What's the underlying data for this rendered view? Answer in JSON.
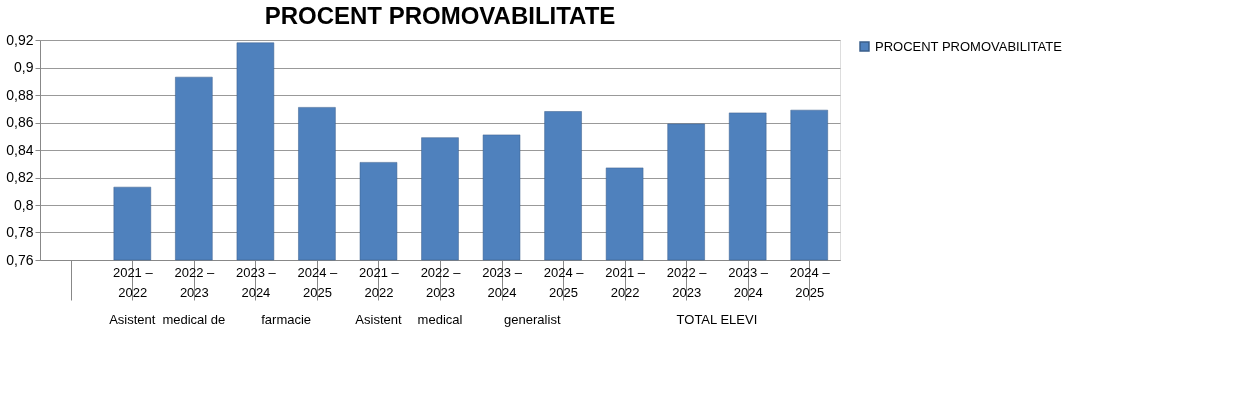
{
  "chart_data": {
    "type": "bar",
    "title": "PROCENT  PROMOVABILITATE",
    "categories": [
      null,
      "2021 – 2022",
      "2022 – 2023",
      "2023 – 2024",
      "2024 – 2025",
      "2021 – 2022",
      "2022 – 2023",
      "2023 – 2024",
      "2024 – 2025",
      "2021 – 2022",
      "2022 – 2023",
      "2023 – 2024",
      "2024 – 2025"
    ],
    "series": [
      {
        "name": "PROCENT  PROMOVABILITATE",
        "color": "#4f81bd",
        "values": [
          null,
          0.813,
          0.893,
          0.918,
          0.871,
          0.831,
          0.849,
          0.851,
          0.868,
          0.827,
          0.859,
          0.867,
          0.869
        ]
      }
    ],
    "annotations": [
      "Asistent",
      "medical de",
      "farmacie",
      "Asistent",
      "medical",
      "generalist",
      "TOTAL ELEVI"
    ],
    "ylim": [
      0.76,
      0.92
    ],
    "yticks": [
      {
        "value": 0.76,
        "label": "0,76"
      },
      {
        "value": 0.78,
        "label": "0,78"
      },
      {
        "value": 0.8,
        "label": "0,8"
      },
      {
        "value": 0.82,
        "label": "0,82"
      },
      {
        "value": 0.84,
        "label": "0,84"
      },
      {
        "value": 0.86,
        "label": "0,86"
      },
      {
        "value": 0.88,
        "label": "0,88"
      },
      {
        "value": 0.9,
        "label": "0,9"
      },
      {
        "value": 0.92,
        "label": "0,92"
      }
    ],
    "grid": "y",
    "legend": "right"
  }
}
